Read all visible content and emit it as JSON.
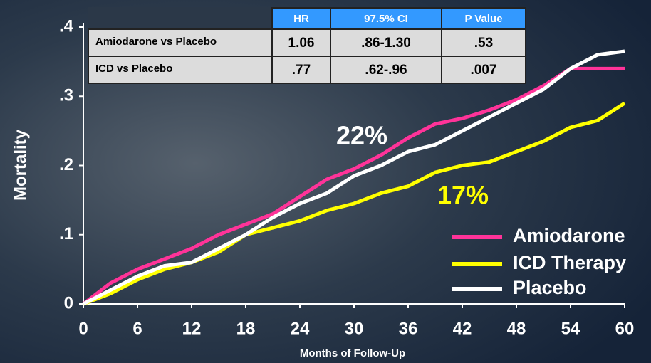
{
  "chart_data": {
    "type": "line",
    "y_label": "Mortality",
    "x_label": "Months of Follow-Up",
    "x": [
      0,
      3,
      6,
      9,
      12,
      15,
      18,
      21,
      24,
      27,
      30,
      33,
      36,
      39,
      42,
      45,
      48,
      51,
      54,
      57,
      60
    ],
    "series": [
      {
        "name": "Amiodarone",
        "color": "#ff3399",
        "values": [
          0,
          0.03,
          0.05,
          0.065,
          0.08,
          0.1,
          0.115,
          0.13,
          0.155,
          0.18,
          0.195,
          0.215,
          0.24,
          0.26,
          0.268,
          0.28,
          0.295,
          0.315,
          0.34,
          0.34,
          0.34
        ]
      },
      {
        "name": "ICD Therapy",
        "color": "#ffff00",
        "values": [
          0,
          0.015,
          0.035,
          0.05,
          0.06,
          0.075,
          0.1,
          0.11,
          0.12,
          0.135,
          0.145,
          0.16,
          0.17,
          0.19,
          0.2,
          0.205,
          0.22,
          0.235,
          0.255,
          0.265,
          0.29
        ]
      },
      {
        "name": "Placebo",
        "color": "#ffffff",
        "values": [
          0,
          0.02,
          0.04,
          0.055,
          0.06,
          0.08,
          0.1,
          0.125,
          0.145,
          0.16,
          0.185,
          0.2,
          0.22,
          0.23,
          0.25,
          0.27,
          0.29,
          0.31,
          0.34,
          0.36,
          0.365
        ]
      }
    ],
    "xlim": [
      0,
      60
    ],
    "xticks": [
      0,
      6,
      12,
      18,
      24,
      30,
      36,
      42,
      48,
      54,
      60
    ],
    "ylim": [
      0,
      0.4
    ],
    "yticks": [
      0,
      {
        "value": 0.1,
        "label": ".1"
      },
      {
        "value": 0.2,
        "label": ".2"
      },
      {
        "value": 0.3,
        "label": ".3"
      },
      {
        "value": 0.4,
        "label": ".4"
      }
    ],
    "annotations": [
      {
        "text": "22%",
        "color": "#ffffff"
      },
      {
        "text": "17%",
        "color": "#ffff00"
      }
    ],
    "legend": "lower right"
  },
  "table": {
    "columns": [
      "HR",
      "97.5% CI",
      "P Value"
    ],
    "rows": [
      {
        "label": "Amiodarone vs Placebo",
        "cells": [
          "1.06",
          ".86-1.30",
          ".53"
        ]
      },
      {
        "label": "ICD vs Placebo",
        "cells": [
          ".77",
          ".62-.96",
          ".007"
        ]
      }
    ]
  }
}
